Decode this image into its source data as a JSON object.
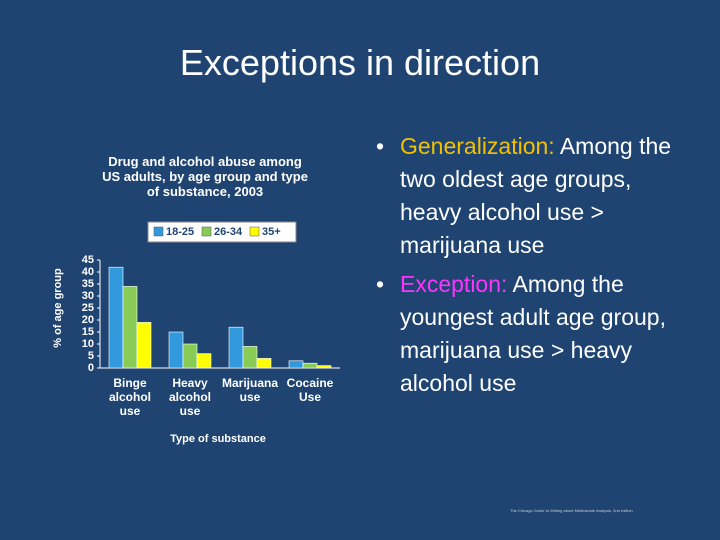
{
  "title": "Exceptions in direction",
  "bullets": [
    {
      "label": "Generalization:",
      "text": "Among the two oldest age groups, heavy alcohol use > marijuana use"
    },
    {
      "label": "Exception:",
      "text": "Among the youngest adult age group, marijuana use > heavy alcohol use"
    }
  ],
  "footnote": "The Chicago Guide to Writing about Multivariate Analysis, 2nd edition",
  "chart_data": {
    "type": "bar",
    "title": "Drug and alcohol abuse among\nUS adults, by age group and type\nof substance, 2003",
    "x_label": "Type of substance",
    "y_label": "% of age group",
    "categories": [
      "Binge\nalcohol\nuse",
      "Heavy\nalcohol\nuse",
      "Marijuana\nuse",
      "Cocaine\nUse"
    ],
    "series": [
      {
        "name": "18-25",
        "color": "#3399dd",
        "values": [
          42,
          15,
          17,
          3
        ]
      },
      {
        "name": "26-34",
        "color": "#88cc55",
        "values": [
          34,
          10,
          9,
          2
        ]
      },
      {
        "name": "35+",
        "color": "#ffff00",
        "values": [
          19,
          6,
          4,
          1
        ]
      }
    ],
    "ylim": [
      0,
      45
    ],
    "yticks": [
      0,
      5,
      10,
      15,
      20,
      25,
      30,
      35,
      40,
      45
    ],
    "legend": "top"
  }
}
